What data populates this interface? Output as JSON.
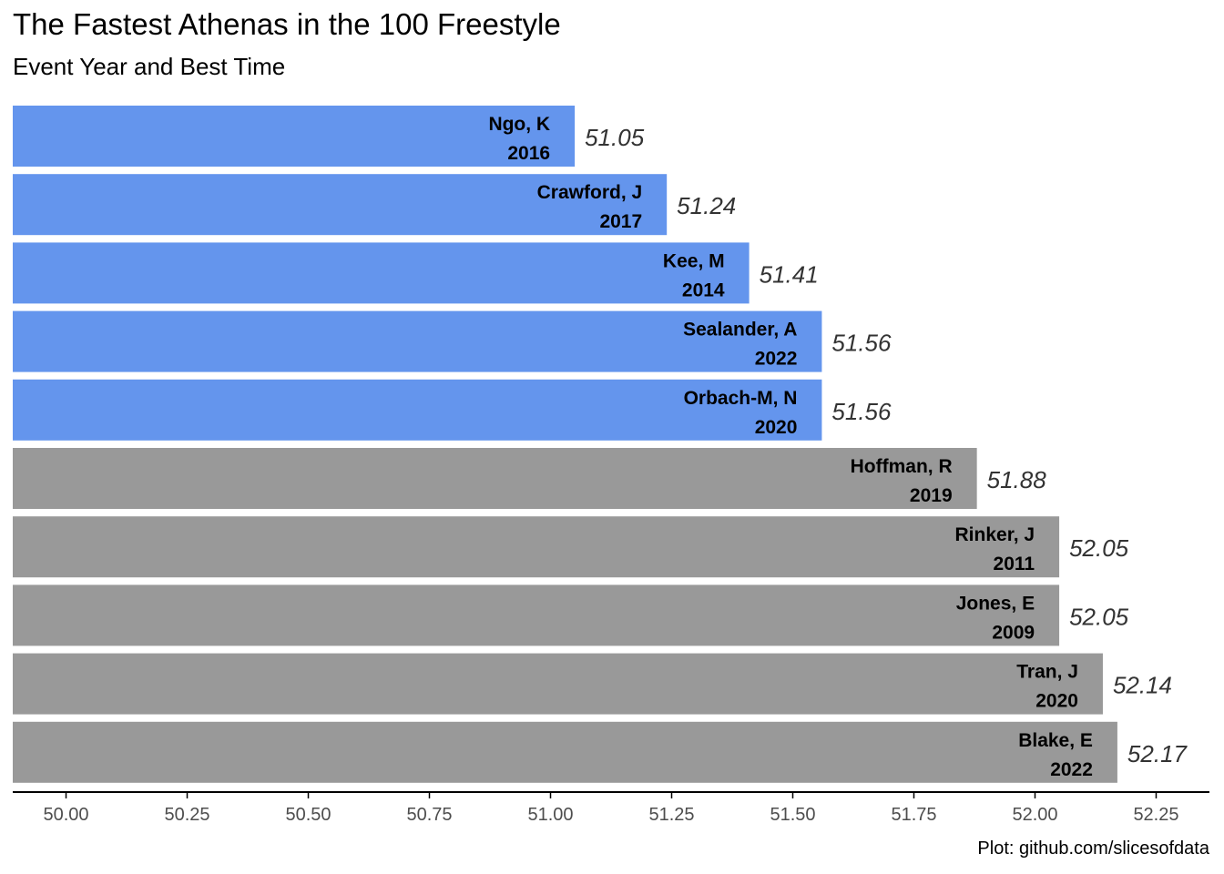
{
  "chart_data": {
    "type": "bar",
    "orientation": "horizontal",
    "title": "The Fastest Athenas in the 100 Freestyle",
    "subtitle": "Event Year and Best Time",
    "caption": "Plot: github.com/slicesofdata",
    "xlim": [
      49.89,
      52.36
    ],
    "bar_base": 49.89,
    "x_ticks": [
      "50.00",
      "50.25",
      "50.50",
      "50.75",
      "51.00",
      "51.25",
      "51.50",
      "51.75",
      "52.00",
      "52.25"
    ],
    "grid": false,
    "legend": "none",
    "colors": {
      "highlight": "#6495ED",
      "other": "#999999",
      "axis": "#000000"
    },
    "bars": [
      {
        "name": "Ngo, K",
        "year": "2016",
        "value": 51.05,
        "label": "51.05",
        "group": "highlight"
      },
      {
        "name": "Crawford, J",
        "year": "2017",
        "value": 51.24,
        "label": "51.24",
        "group": "highlight"
      },
      {
        "name": "Kee, M",
        "year": "2014",
        "value": 51.41,
        "label": "51.41",
        "group": "highlight"
      },
      {
        "name": "Sealander, A",
        "year": "2022",
        "value": 51.56,
        "label": "51.56",
        "group": "highlight"
      },
      {
        "name": "Orbach-M, N",
        "year": "2020",
        "value": 51.56,
        "label": "51.56",
        "group": "highlight"
      },
      {
        "name": "Hoffman, R",
        "year": "2019",
        "value": 51.88,
        "label": "51.88",
        "group": "other"
      },
      {
        "name": "Rinker, J",
        "year": "2011",
        "value": 52.05,
        "label": "52.05",
        "group": "other"
      },
      {
        "name": "Jones, E",
        "year": "2009",
        "value": 52.05,
        "label": "52.05",
        "group": "other"
      },
      {
        "name": "Tran, J",
        "year": "2020",
        "value": 52.14,
        "label": "52.14",
        "group": "other"
      },
      {
        "name": "Blake, E",
        "year": "2022",
        "value": 52.17,
        "label": "52.17",
        "group": "other"
      }
    ]
  }
}
